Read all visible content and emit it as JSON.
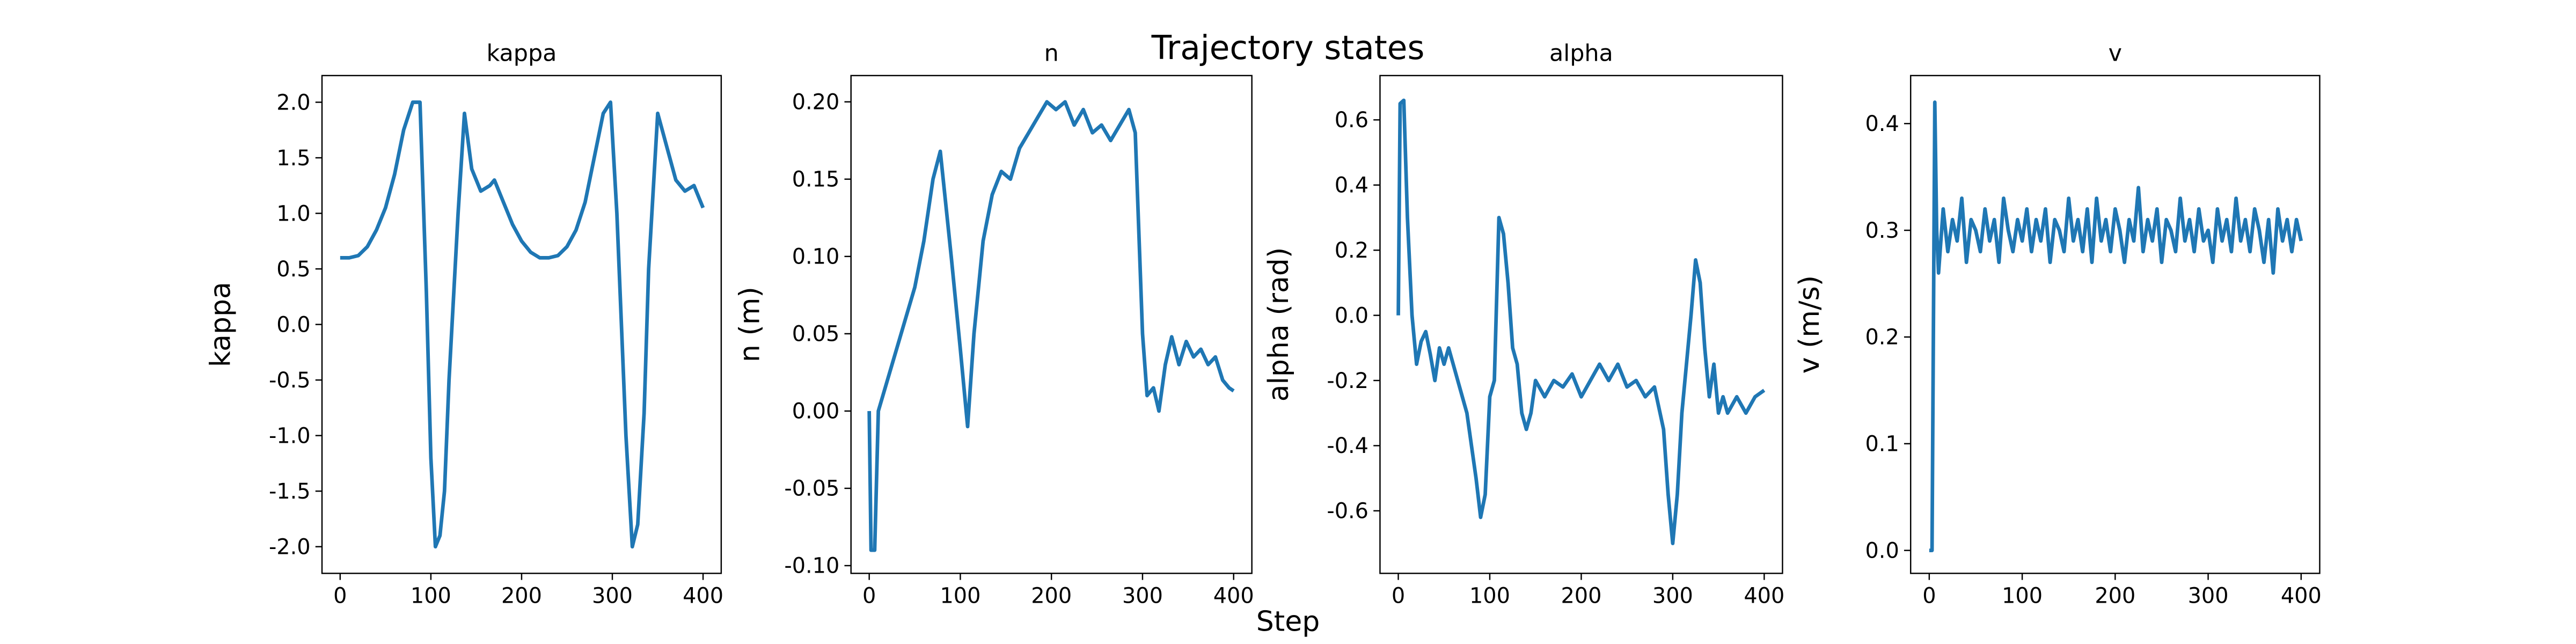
{
  "title": "Trajectory states",
  "xlabel": "Step",
  "chart_data": [
    {
      "type": "line",
      "title": "kappa",
      "ylabel": "kappa",
      "color": "#1f77b4",
      "xlim": [
        -20,
        420
      ],
      "xticks": [
        0,
        100,
        200,
        300,
        400
      ],
      "ylim": [
        -2.24,
        2.24
      ],
      "yticks": [
        {
          "value": -2,
          "label": "-2.0"
        },
        -1.5,
        {
          "value": -1,
          "label": "-1.0"
        },
        -0.5,
        {
          "value": 0,
          "label": "0.0"
        },
        0.5,
        {
          "value": 1,
          "label": "1.0"
        },
        1.5,
        {
          "value": 2,
          "label": "2.0"
        }
      ],
      "x": [
        0,
        10,
        20,
        30,
        40,
        50,
        60,
        70,
        80,
        88,
        95,
        100,
        105,
        110,
        115,
        120,
        130,
        137,
        145,
        155,
        165,
        170,
        180,
        190,
        200,
        210,
        220,
        230,
        240,
        250,
        260,
        270,
        280,
        290,
        298,
        305,
        315,
        322,
        328,
        335,
        340,
        350,
        360,
        370,
        380,
        390,
        400
      ],
      "values": [
        0.6,
        0.6,
        0.62,
        0.7,
        0.85,
        1.05,
        1.35,
        1.75,
        2.0,
        2.0,
        0.3,
        -1.2,
        -2.0,
        -1.9,
        -1.5,
        -0.5,
        1.0,
        1.9,
        1.4,
        1.2,
        1.25,
        1.3,
        1.1,
        0.9,
        0.75,
        0.65,
        0.6,
        0.6,
        0.62,
        0.7,
        0.85,
        1.1,
        1.5,
        1.9,
        2.0,
        1.0,
        -1.0,
        -2.0,
        -1.8,
        -0.8,
        0.5,
        1.9,
        1.6,
        1.3,
        1.2,
        1.25,
        1.05
      ]
    },
    {
      "type": "line",
      "title": "n",
      "ylabel": "n (m)",
      "color": "#1f77b4",
      "xlim": [
        -20,
        420
      ],
      "xticks": [
        0,
        100,
        200,
        300,
        400
      ],
      "ylim": [
        -0.105,
        0.217
      ],
      "yticks": [
        {
          "value": -0.1,
          "label": "-0.10"
        },
        -0.05,
        {
          "value": 0,
          "label": "0.00"
        },
        0.05,
        {
          "value": 0.1,
          "label": "0.10"
        },
        0.15,
        {
          "value": 0.2,
          "label": "0.20"
        }
      ],
      "x": [
        0,
        2,
        6,
        10,
        20,
        30,
        40,
        50,
        60,
        70,
        78,
        90,
        100,
        108,
        115,
        125,
        135,
        145,
        155,
        165,
        175,
        185,
        195,
        205,
        215,
        225,
        235,
        245,
        255,
        265,
        275,
        285,
        292,
        300,
        305,
        312,
        318,
        325,
        332,
        340,
        348,
        356,
        364,
        372,
        380,
        388,
        395,
        400
      ],
      "values": [
        0,
        -0.09,
        -0.09,
        0,
        0.02,
        0.04,
        0.06,
        0.08,
        0.11,
        0.15,
        0.168,
        0.1,
        0.04,
        -0.01,
        0.05,
        0.11,
        0.14,
        0.155,
        0.15,
        0.17,
        0.18,
        0.19,
        0.2,
        0.195,
        0.2,
        0.185,
        0.195,
        0.18,
        0.185,
        0.175,
        0.185,
        0.195,
        0.18,
        0.05,
        0.01,
        0.015,
        0.0,
        0.03,
        0.048,
        0.03,
        0.045,
        0.035,
        0.04,
        0.03,
        0.035,
        0.02,
        0.015,
        0.013
      ]
    },
    {
      "type": "line",
      "title": "alpha",
      "ylabel": "alpha (rad)",
      "color": "#1f77b4",
      "xlim": [
        -20,
        420
      ],
      "xticks": [
        0,
        100,
        200,
        300,
        400
      ],
      "ylim": [
        -0.792,
        0.736
      ],
      "yticks": [
        -0.6,
        -0.4,
        -0.2,
        {
          "value": 0,
          "label": "0.0"
        },
        0.2,
        0.4,
        0.6
      ],
      "x": [
        0,
        2,
        6,
        10,
        15,
        20,
        25,
        30,
        35,
        40,
        45,
        50,
        55,
        60,
        65,
        70,
        75,
        80,
        85,
        90,
        95,
        100,
        105,
        110,
        115,
        120,
        125,
        130,
        135,
        140,
        145,
        150,
        160,
        170,
        180,
        190,
        200,
        210,
        220,
        230,
        240,
        250,
        260,
        270,
        280,
        290,
        295,
        300,
        305,
        310,
        320,
        325,
        330,
        335,
        340,
        345,
        350,
        355,
        360,
        370,
        380,
        390,
        400
      ],
      "values": [
        0,
        0.65,
        0.66,
        0.3,
        0.0,
        -0.15,
        -0.08,
        -0.05,
        -0.12,
        -0.2,
        -0.1,
        -0.15,
        -0.1,
        -0.15,
        -0.2,
        -0.25,
        -0.3,
        -0.4,
        -0.5,
        -0.62,
        -0.55,
        -0.25,
        -0.2,
        0.3,
        0.25,
        0.1,
        -0.1,
        -0.15,
        -0.3,
        -0.35,
        -0.3,
        -0.2,
        -0.25,
        -0.2,
        -0.22,
        -0.18,
        -0.25,
        -0.2,
        -0.15,
        -0.2,
        -0.15,
        -0.22,
        -0.2,
        -0.25,
        -0.22,
        -0.35,
        -0.55,
        -0.7,
        -0.55,
        -0.3,
        0.0,
        0.17,
        0.1,
        -0.1,
        -0.25,
        -0.15,
        -0.3,
        -0.25,
        -0.3,
        -0.25,
        -0.3,
        -0.25,
        -0.23
      ]
    },
    {
      "type": "line",
      "title": "v",
      "ylabel": "v (m/s)",
      "color": "#1f77b4",
      "xlim": [
        -20,
        420
      ],
      "xticks": [
        0,
        100,
        200,
        300,
        400
      ],
      "ylim": [
        -0.0215,
        0.445
      ],
      "yticks": [
        {
          "value": 0,
          "label": "0.0"
        },
        0.1,
        0.2,
        0.3,
        0.4
      ],
      "x": [
        0,
        3,
        6,
        8,
        10,
        15,
        20,
        25,
        30,
        35,
        40,
        45,
        50,
        55,
        60,
        65,
        70,
        75,
        80,
        85,
        90,
        95,
        100,
        105,
        110,
        115,
        120,
        125,
        130,
        135,
        140,
        145,
        150,
        155,
        160,
        165,
        170,
        175,
        180,
        185,
        190,
        195,
        200,
        205,
        210,
        215,
        220,
        225,
        230,
        235,
        240,
        245,
        250,
        255,
        260,
        265,
        270,
        275,
        280,
        285,
        290,
        295,
        300,
        305,
        310,
        315,
        320,
        325,
        330,
        335,
        340,
        345,
        350,
        355,
        360,
        365,
        370,
        375,
        380,
        385,
        390,
        395,
        400
      ],
      "values": [
        0,
        0,
        0.42,
        0.3,
        0.26,
        0.32,
        0.28,
        0.31,
        0.29,
        0.33,
        0.27,
        0.31,
        0.3,
        0.28,
        0.32,
        0.29,
        0.31,
        0.27,
        0.33,
        0.3,
        0.28,
        0.31,
        0.29,
        0.32,
        0.28,
        0.31,
        0.29,
        0.32,
        0.27,
        0.31,
        0.3,
        0.28,
        0.33,
        0.29,
        0.31,
        0.28,
        0.32,
        0.27,
        0.33,
        0.29,
        0.31,
        0.28,
        0.32,
        0.3,
        0.27,
        0.31,
        0.29,
        0.34,
        0.28,
        0.31,
        0.29,
        0.32,
        0.27,
        0.31,
        0.3,
        0.28,
        0.33,
        0.29,
        0.31,
        0.28,
        0.32,
        0.29,
        0.3,
        0.27,
        0.32,
        0.29,
        0.31,
        0.28,
        0.33,
        0.29,
        0.31,
        0.28,
        0.32,
        0.3,
        0.27,
        0.31,
        0.26,
        0.32,
        0.29,
        0.31,
        0.28,
        0.31,
        0.29
      ]
    }
  ]
}
